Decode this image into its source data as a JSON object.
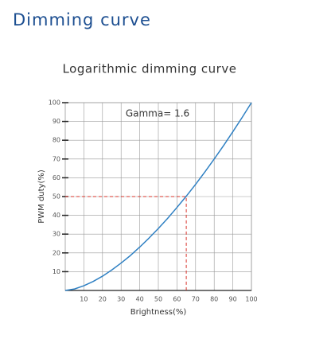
{
  "header": {
    "title": "Dimming curve"
  },
  "chart_data": {
    "type": "line",
    "title": "Logarithmic dimming curve",
    "annotation": "Gamma= 1.6",
    "x_label": "Brightness(%)",
    "y_label": "PWM duty(%)",
    "x": [
      0,
      5,
      10,
      15,
      20,
      25,
      30,
      35,
      40,
      45,
      50,
      55,
      60,
      65,
      70,
      75,
      80,
      85,
      90,
      95,
      100
    ],
    "series": [
      {
        "name": "Gamma 1.6",
        "color": "#2f80c3",
        "values": [
          0,
          0.8,
          2.5,
          4.8,
          7.6,
          10.9,
          14.6,
          18.6,
          23.1,
          27.9,
          33.0,
          38.4,
          44.2,
          50.2,
          56.5,
          63.1,
          70.0,
          77.1,
          84.5,
          92.1,
          100
        ]
      }
    ],
    "guide": {
      "x": 65,
      "y": 50,
      "color": "#d9342b"
    },
    "xlim": [
      0,
      100
    ],
    "ylim": [
      0,
      100
    ],
    "xticks": [
      10,
      20,
      30,
      40,
      50,
      60,
      70,
      80,
      90,
      100
    ],
    "yticks": [
      10,
      20,
      30,
      40,
      50,
      60,
      70,
      80,
      90,
      100
    ],
    "grid": true
  }
}
